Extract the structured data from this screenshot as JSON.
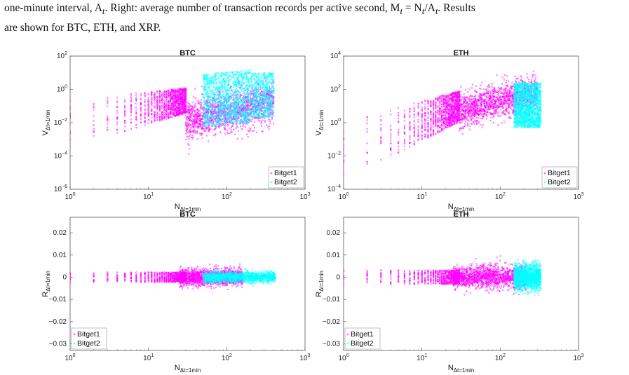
{
  "caption": {
    "line1": "one-minute interval, A",
    "line1_sub": "t",
    "line1_rest": ". Right: average number of transaction records per active second, M",
    "eq": " = N",
    "eq_rest": "/A",
    "line1_end": ". Results",
    "line2": "are shown for BTC, ETH, and XRP."
  },
  "legend": {
    "series1": "Bitget1",
    "series2": "Bitget2"
  },
  "colors": {
    "series1": "#ff00ff",
    "series2": "#00ffff"
  },
  "chart_data": [
    {
      "type": "scatter",
      "title": "BTC",
      "xlabel": "N",
      "xlabel_sub": "Δt=1min",
      "ylabel": "V",
      "ylabel_sub": "Δt=1min",
      "xscale": "log",
      "yscale": "log",
      "xlim": [
        1,
        1000
      ],
      "ylim": [
        1e-06,
        100
      ],
      "xticks": [
        "10^0",
        "10^1",
        "10^2",
        "10^3"
      ],
      "yticks": [
        "10^-6",
        "10^-4",
        "10^-2",
        "10^0",
        "10^2"
      ],
      "legend_position": "bottom-right",
      "series": [
        {
          "name": "Bitget1",
          "x_range": [
            1,
            400
          ],
          "y_range": [
            0.0001,
            5
          ]
        },
        {
          "name": "Bitget2",
          "x_range": [
            40,
            420
          ],
          "y_range": [
            0.005,
            10
          ]
        }
      ]
    },
    {
      "type": "scatter",
      "title": "ETH",
      "xlabel": "N",
      "xlabel_sub": "Δt=1min",
      "ylabel": "V",
      "ylabel_sub": "Δt=1min",
      "xscale": "log",
      "yscale": "log",
      "xlim": [
        1,
        1000
      ],
      "ylim": [
        0.0001,
        10000
      ],
      "xticks": [
        "10^0",
        "10^1",
        "10^2",
        "10^3"
      ],
      "yticks": [
        "10^-4",
        "10^-2",
        "10^0",
        "10^2",
        "10^4"
      ],
      "legend_position": "bottom-right",
      "series": [
        {
          "name": "Bitget1",
          "x_range": [
            1,
            300
          ],
          "y_range": [
            0.001,
            100
          ]
        },
        {
          "name": "Bitget2",
          "x_range": [
            150,
            350
          ],
          "y_range": [
            0.5,
            300
          ]
        }
      ]
    },
    {
      "type": "scatter",
      "title": "BTC",
      "xlabel": "N",
      "xlabel_sub": "Δt=1min",
      "ylabel": "R",
      "ylabel_sub": "Δt=1min",
      "xscale": "log",
      "yscale": "linear",
      "xlim": [
        1,
        1000
      ],
      "ylim": [
        -0.033,
        0.027
      ],
      "xticks": [
        "10^0",
        "10^1",
        "10^2",
        "10^3"
      ],
      "yticks": [
        "-0.03",
        "-0.02",
        "-0.01",
        "0",
        "0.01",
        "0.02"
      ],
      "legend_position": "bottom-left",
      "series": [
        {
          "name": "Bitget1",
          "x_range": [
            1,
            200
          ],
          "y_range": [
            -0.01,
            0.01
          ]
        },
        {
          "name": "Bitget2",
          "x_range": [
            50,
            450
          ],
          "y_range": [
            -0.006,
            0.006
          ]
        }
      ]
    },
    {
      "type": "scatter",
      "title": "ETH",
      "xlabel": "N",
      "xlabel_sub": "Δt=1min",
      "ylabel": "R",
      "ylabel_sub": "Δt=1min",
      "xscale": "log",
      "yscale": "linear",
      "xlim": [
        1,
        1000
      ],
      "ylim": [
        -0.033,
        0.027
      ],
      "xticks": [
        "10^0",
        "10^1",
        "10^2",
        "10^3"
      ],
      "yticks": [
        "-0.03",
        "-0.02",
        "-0.01",
        "0",
        "0.01",
        "0.02"
      ],
      "legend_position": "bottom-left",
      "series": [
        {
          "name": "Bitget1",
          "x_range": [
            1,
            300
          ],
          "y_range": [
            -0.015,
            0.015
          ]
        },
        {
          "name": "Bitget2",
          "x_range": [
            150,
            350
          ],
          "y_range": [
            -0.01,
            0.012
          ]
        }
      ]
    }
  ]
}
